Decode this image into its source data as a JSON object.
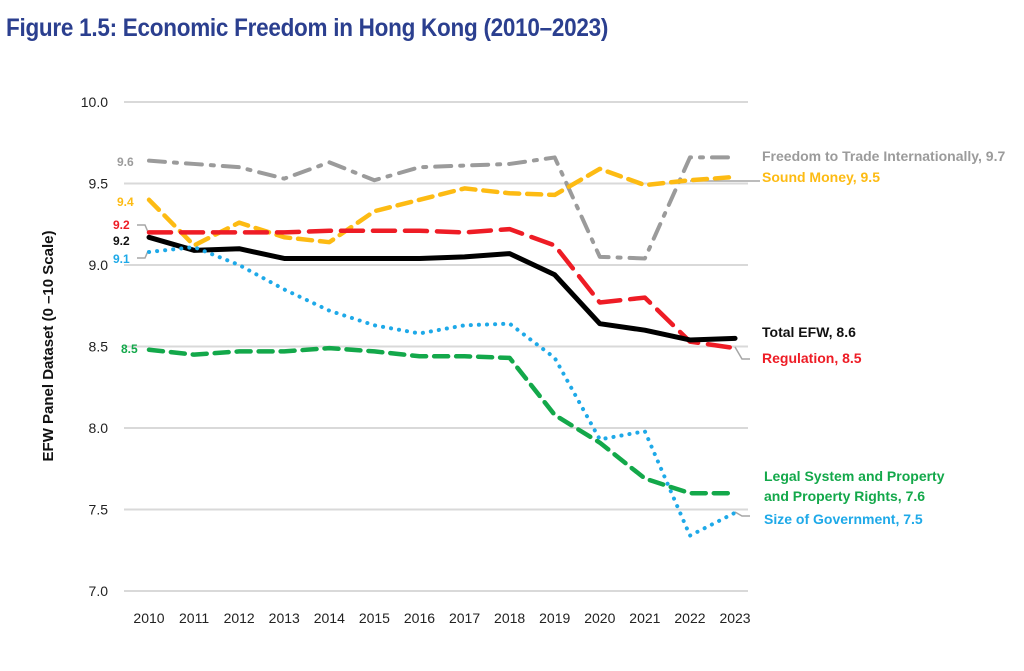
{
  "chart_data": {
    "type": "line",
    "title": "Figure 1.5: Economic Freedom in Hong Kong (2010–2023)",
    "xlabel": "",
    "ylabel": "EFW Panel Dataset (0 –10 Scale)",
    "ylim": [
      7.0,
      10.0
    ],
    "yticks": [
      "10.0",
      "9.5",
      "9.0",
      "8.5",
      "8.0",
      "7.5",
      "7.0"
    ],
    "ytick_values": [
      10.0,
      9.5,
      9.0,
      8.5,
      8.0,
      7.5,
      7.0
    ],
    "grid": true,
    "legend": "direct-labels-right",
    "x": [
      "2010",
      "2011",
      "2012",
      "2013",
      "2014",
      "2015",
      "2016",
      "2017",
      "2018",
      "2019",
      "2020",
      "2021",
      "2022",
      "2023"
    ],
    "series": [
      {
        "key": "trade",
        "name": "Freedom to Trade Internationally",
        "end_label": "Freedom to Trade Internationally, 9.7",
        "start_label": "9.6",
        "color": "#9b9b9b",
        "style": "dashdot",
        "values": [
          9.64,
          9.62,
          9.6,
          9.53,
          9.63,
          9.52,
          9.6,
          9.61,
          9.62,
          9.66,
          9.05,
          9.04,
          9.66,
          9.66
        ]
      },
      {
        "key": "money",
        "name": "Sound Money",
        "end_label": "Sound Money, 9.5",
        "start_label": "9.4",
        "color": "#fdbb13",
        "style": "dashed",
        "values": [
          9.4,
          9.12,
          9.26,
          9.17,
          9.14,
          9.33,
          9.4,
          9.47,
          9.44,
          9.43,
          9.59,
          9.49,
          9.52,
          9.54
        ]
      },
      {
        "key": "regulation",
        "name": "Regulation",
        "end_label": "Regulation, 8.5",
        "start_label": "9.2",
        "color": "#ee1c25",
        "style": "longdash",
        "values": [
          9.2,
          9.2,
          9.2,
          9.2,
          9.21,
          9.21,
          9.21,
          9.2,
          9.22,
          9.12,
          8.77,
          8.8,
          8.53,
          8.49
        ]
      },
      {
        "key": "total",
        "name": "Total EFW",
        "end_label": "Total EFW, 8.6",
        "start_label": "9.2",
        "color": "#000000",
        "style": "solid",
        "values": [
          9.17,
          9.09,
          9.1,
          9.04,
          9.04,
          9.04,
          9.04,
          9.05,
          9.07,
          8.94,
          8.64,
          8.6,
          8.54,
          8.55
        ]
      },
      {
        "key": "size",
        "name": "Size of Government",
        "end_label": "Size of Government, 7.5",
        "start_label": "9.1",
        "color": "#1ea9e8",
        "style": "dotted",
        "values": [
          9.08,
          9.11,
          9.0,
          8.85,
          8.72,
          8.63,
          8.58,
          8.63,
          8.64,
          8.43,
          7.93,
          7.98,
          7.34,
          7.48
        ]
      },
      {
        "key": "legal",
        "name": "Legal System and Property and Property Rights",
        "end_label_lines": [
          "Legal System and Property",
          "and Property Rights, 7.6"
        ],
        "start_label": "8.5",
        "color": "#13a84a",
        "style": "dashed",
        "values": [
          8.48,
          8.45,
          8.47,
          8.47,
          8.49,
          8.47,
          8.44,
          8.44,
          8.43,
          8.08,
          7.91,
          7.69,
          7.6,
          7.6
        ]
      }
    ]
  },
  "colors": {
    "title": "#2b3f8f",
    "grid": "#d9d9d9",
    "leader": "#a6a6a6"
  }
}
